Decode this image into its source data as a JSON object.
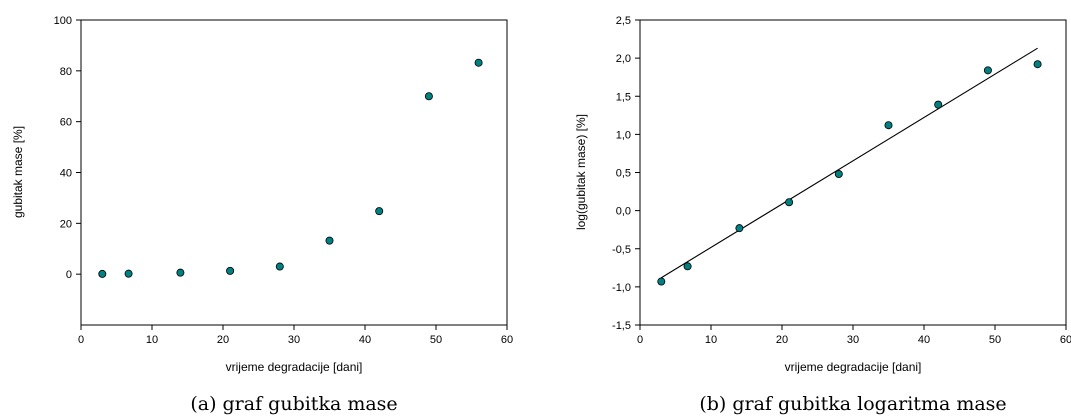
{
  "chart_data": [
    {
      "type": "scatter",
      "caption": "(a) graf gubitka mase",
      "xlabel": "vrijeme degradacije [dani]",
      "ylabel": "gubitak mase [%]",
      "xlim": [
        0,
        60
      ],
      "ylim": [
        -20,
        100
      ],
      "xticks": [
        0,
        10,
        20,
        30,
        40,
        50,
        60
      ],
      "yticks": [
        0,
        20,
        40,
        60,
        80,
        100
      ],
      "xtick_labels": [
        "0",
        "10",
        "20",
        "30",
        "40",
        "50",
        "60"
      ],
      "ytick_labels": [
        "0",
        "20",
        "40",
        "60",
        "80",
        "100"
      ],
      "grid": false,
      "series": [
        {
          "x": [
            3,
            6.7,
            14,
            21,
            28,
            35,
            42,
            49,
            56
          ],
          "y": [
            0.1,
            0.2,
            0.6,
            1.3,
            3.0,
            13.2,
            24.8,
            70.0,
            83.2
          ],
          "color": "#008080"
        }
      ]
    },
    {
      "type": "scatter",
      "caption": "(b) graf gubitka logaritma mase",
      "xlabel": "vrijeme degradacije [dani]",
      "ylabel": "log(gubitak mase) [%]",
      "xlim": [
        0,
        60
      ],
      "ylim": [
        -1.5,
        2.5
      ],
      "xticks": [
        0,
        10,
        20,
        30,
        40,
        50,
        60
      ],
      "yticks": [
        -1.5,
        -1.0,
        -0.5,
        0.0,
        0.5,
        1.0,
        1.5,
        2.0,
        2.5
      ],
      "xtick_labels": [
        "0",
        "10",
        "20",
        "30",
        "40",
        "50",
        "60"
      ],
      "ytick_labels": [
        "-1,5",
        "-1,0",
        "-0,5",
        "0,0",
        "0,5",
        "1,0",
        "1,5",
        "2,0",
        "2,5"
      ],
      "grid": false,
      "series": [
        {
          "x": [
            3,
            6.7,
            14,
            21,
            28,
            35,
            42,
            49,
            56
          ],
          "y": [
            -0.93,
            -0.73,
            -0.23,
            0.11,
            0.48,
            1.12,
            1.39,
            1.84,
            1.92
          ],
          "color": "#008080"
        }
      ],
      "fit_line": {
        "x": [
          3,
          56
        ],
        "y": [
          -0.88,
          2.13
        ]
      }
    }
  ]
}
